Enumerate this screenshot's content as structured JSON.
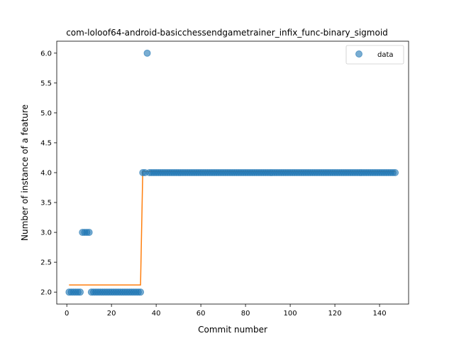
{
  "chart_data": {
    "type": "scatter",
    "title": "com-loloof64-android-basicchessendgametrainer_infix_func-binary_sigmoid",
    "xlabel": "Commit number",
    "ylabel": "Number of instance of a feature",
    "xlim": [
      -4.5,
      153
    ],
    "ylim": [
      1.8,
      6.2
    ],
    "xticks": [
      0,
      20,
      40,
      60,
      80,
      100,
      120,
      140
    ],
    "yticks": [
      2.0,
      2.5,
      3.0,
      3.5,
      4.0,
      4.5,
      5.0,
      5.5,
      6.0
    ],
    "ytick_labels": [
      "2.0",
      "2.5",
      "3.0",
      "3.5",
      "4.0",
      "4.5",
      "5.0",
      "5.5",
      "6.0"
    ],
    "legend": {
      "position": "top-right",
      "entries": [
        "data"
      ]
    },
    "grid": false,
    "colors": {
      "data": "#1f77b4",
      "fit": "#ff7f0e"
    },
    "series": [
      {
        "name": "data",
        "kind": "scatter",
        "x": [
          1,
          2,
          3,
          4,
          5,
          6,
          7,
          8,
          9,
          10,
          11,
          12,
          13,
          14,
          15,
          16,
          17,
          18,
          19,
          20,
          21,
          22,
          23,
          24,
          25,
          26,
          27,
          28,
          29,
          30,
          31,
          32,
          33,
          34,
          35,
          36,
          37,
          38,
          39,
          40,
          41,
          42,
          43,
          44,
          45,
          46,
          47,
          48,
          49,
          50,
          51,
          52,
          53,
          54,
          55,
          56,
          57,
          58,
          59,
          60,
          61,
          62,
          63,
          64,
          65,
          66,
          67,
          68,
          69,
          70,
          71,
          72,
          73,
          74,
          75,
          76,
          77,
          78,
          79,
          80,
          81,
          82,
          83,
          84,
          85,
          86,
          87,
          88,
          89,
          90,
          91,
          92,
          93,
          94,
          95,
          96,
          97,
          98,
          99,
          100,
          101,
          102,
          103,
          104,
          105,
          106,
          107,
          108,
          109,
          110,
          111,
          112,
          113,
          114,
          115,
          116,
          117,
          118,
          119,
          120,
          121,
          122,
          123,
          124,
          125,
          126,
          127,
          128,
          129,
          130,
          131,
          132,
          133,
          134,
          135,
          136,
          137,
          138,
          139,
          140,
          141,
          142,
          143,
          144,
          145,
          146,
          147
        ],
        "y": [
          2,
          2,
          2,
          2,
          2,
          2,
          3,
          3,
          3,
          3,
          2,
          2,
          2,
          2,
          2,
          2,
          2,
          2,
          2,
          2,
          2,
          2,
          2,
          2,
          2,
          2,
          2,
          2,
          2,
          2,
          2,
          2,
          2,
          4,
          4,
          6,
          4,
          4,
          4,
          4,
          4,
          4,
          4,
          4,
          4,
          4,
          4,
          4,
          4,
          4,
          4,
          4,
          4,
          4,
          4,
          4,
          4,
          4,
          4,
          4,
          4,
          4,
          4,
          4,
          4,
          4,
          4,
          4,
          4,
          4,
          4,
          4,
          4,
          4,
          4,
          4,
          4,
          4,
          4,
          4,
          4,
          4,
          4,
          4,
          4,
          4,
          4,
          4,
          4,
          4,
          4,
          4,
          4,
          4,
          4,
          4,
          4,
          4,
          4,
          4,
          4,
          4,
          4,
          4,
          4,
          4,
          4,
          4,
          4,
          4,
          4,
          4,
          4,
          4,
          4,
          4,
          4,
          4,
          4,
          4,
          4,
          4,
          4,
          4,
          4,
          4,
          4,
          4,
          4,
          4,
          4,
          4,
          4,
          4,
          4,
          4,
          4,
          4,
          4,
          4,
          4,
          4,
          4,
          4,
          4,
          4,
          4
        ]
      },
      {
        "kind": "line",
        "x": [
          1,
          33,
          34,
          147
        ],
        "y": [
          2.12,
          2.12,
          4.02,
          4.02
        ]
      }
    ]
  }
}
